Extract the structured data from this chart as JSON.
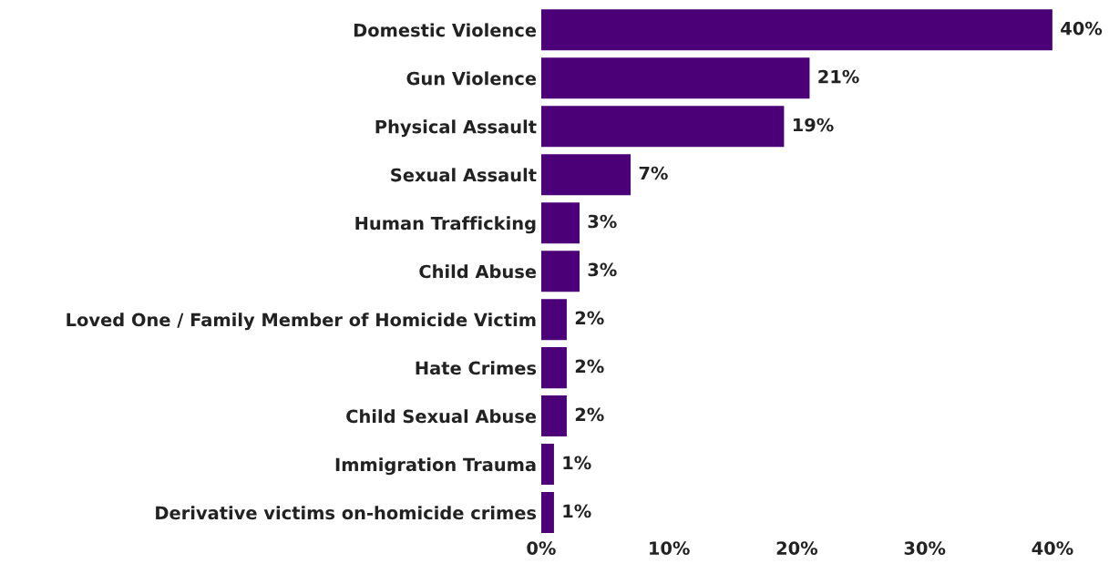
{
  "chart_data": {
    "type": "bar",
    "orientation": "horizontal",
    "categories": [
      "Domestic Violence",
      "Gun Violence",
      "Physical Assault",
      "Sexual Assault",
      "Human Trafficking",
      "Child Abuse",
      "Loved One / Family Member of Homicide Victim",
      "Hate Crimes",
      "Child Sexual Abuse",
      "Immigration Trauma",
      "Derivative victims on-homicide crimes"
    ],
    "values": [
      40,
      21,
      19,
      7,
      3,
      3,
      2,
      2,
      2,
      1,
      1
    ],
    "value_labels": [
      "40%",
      "21%",
      "19%",
      "7%",
      "3%",
      "3%",
      "2%",
      "2%",
      "2%",
      "1%",
      "1%"
    ],
    "color": "#4b0078",
    "xlim": [
      0,
      40
    ],
    "xticks": [
      {
        "value": 0,
        "label": "0%"
      },
      {
        "value": 10,
        "label": "10%"
      },
      {
        "value": 20,
        "label": "20%"
      },
      {
        "value": 30,
        "label": "30%"
      },
      {
        "value": 40,
        "label": "40%"
      }
    ],
    "grid": false
  }
}
